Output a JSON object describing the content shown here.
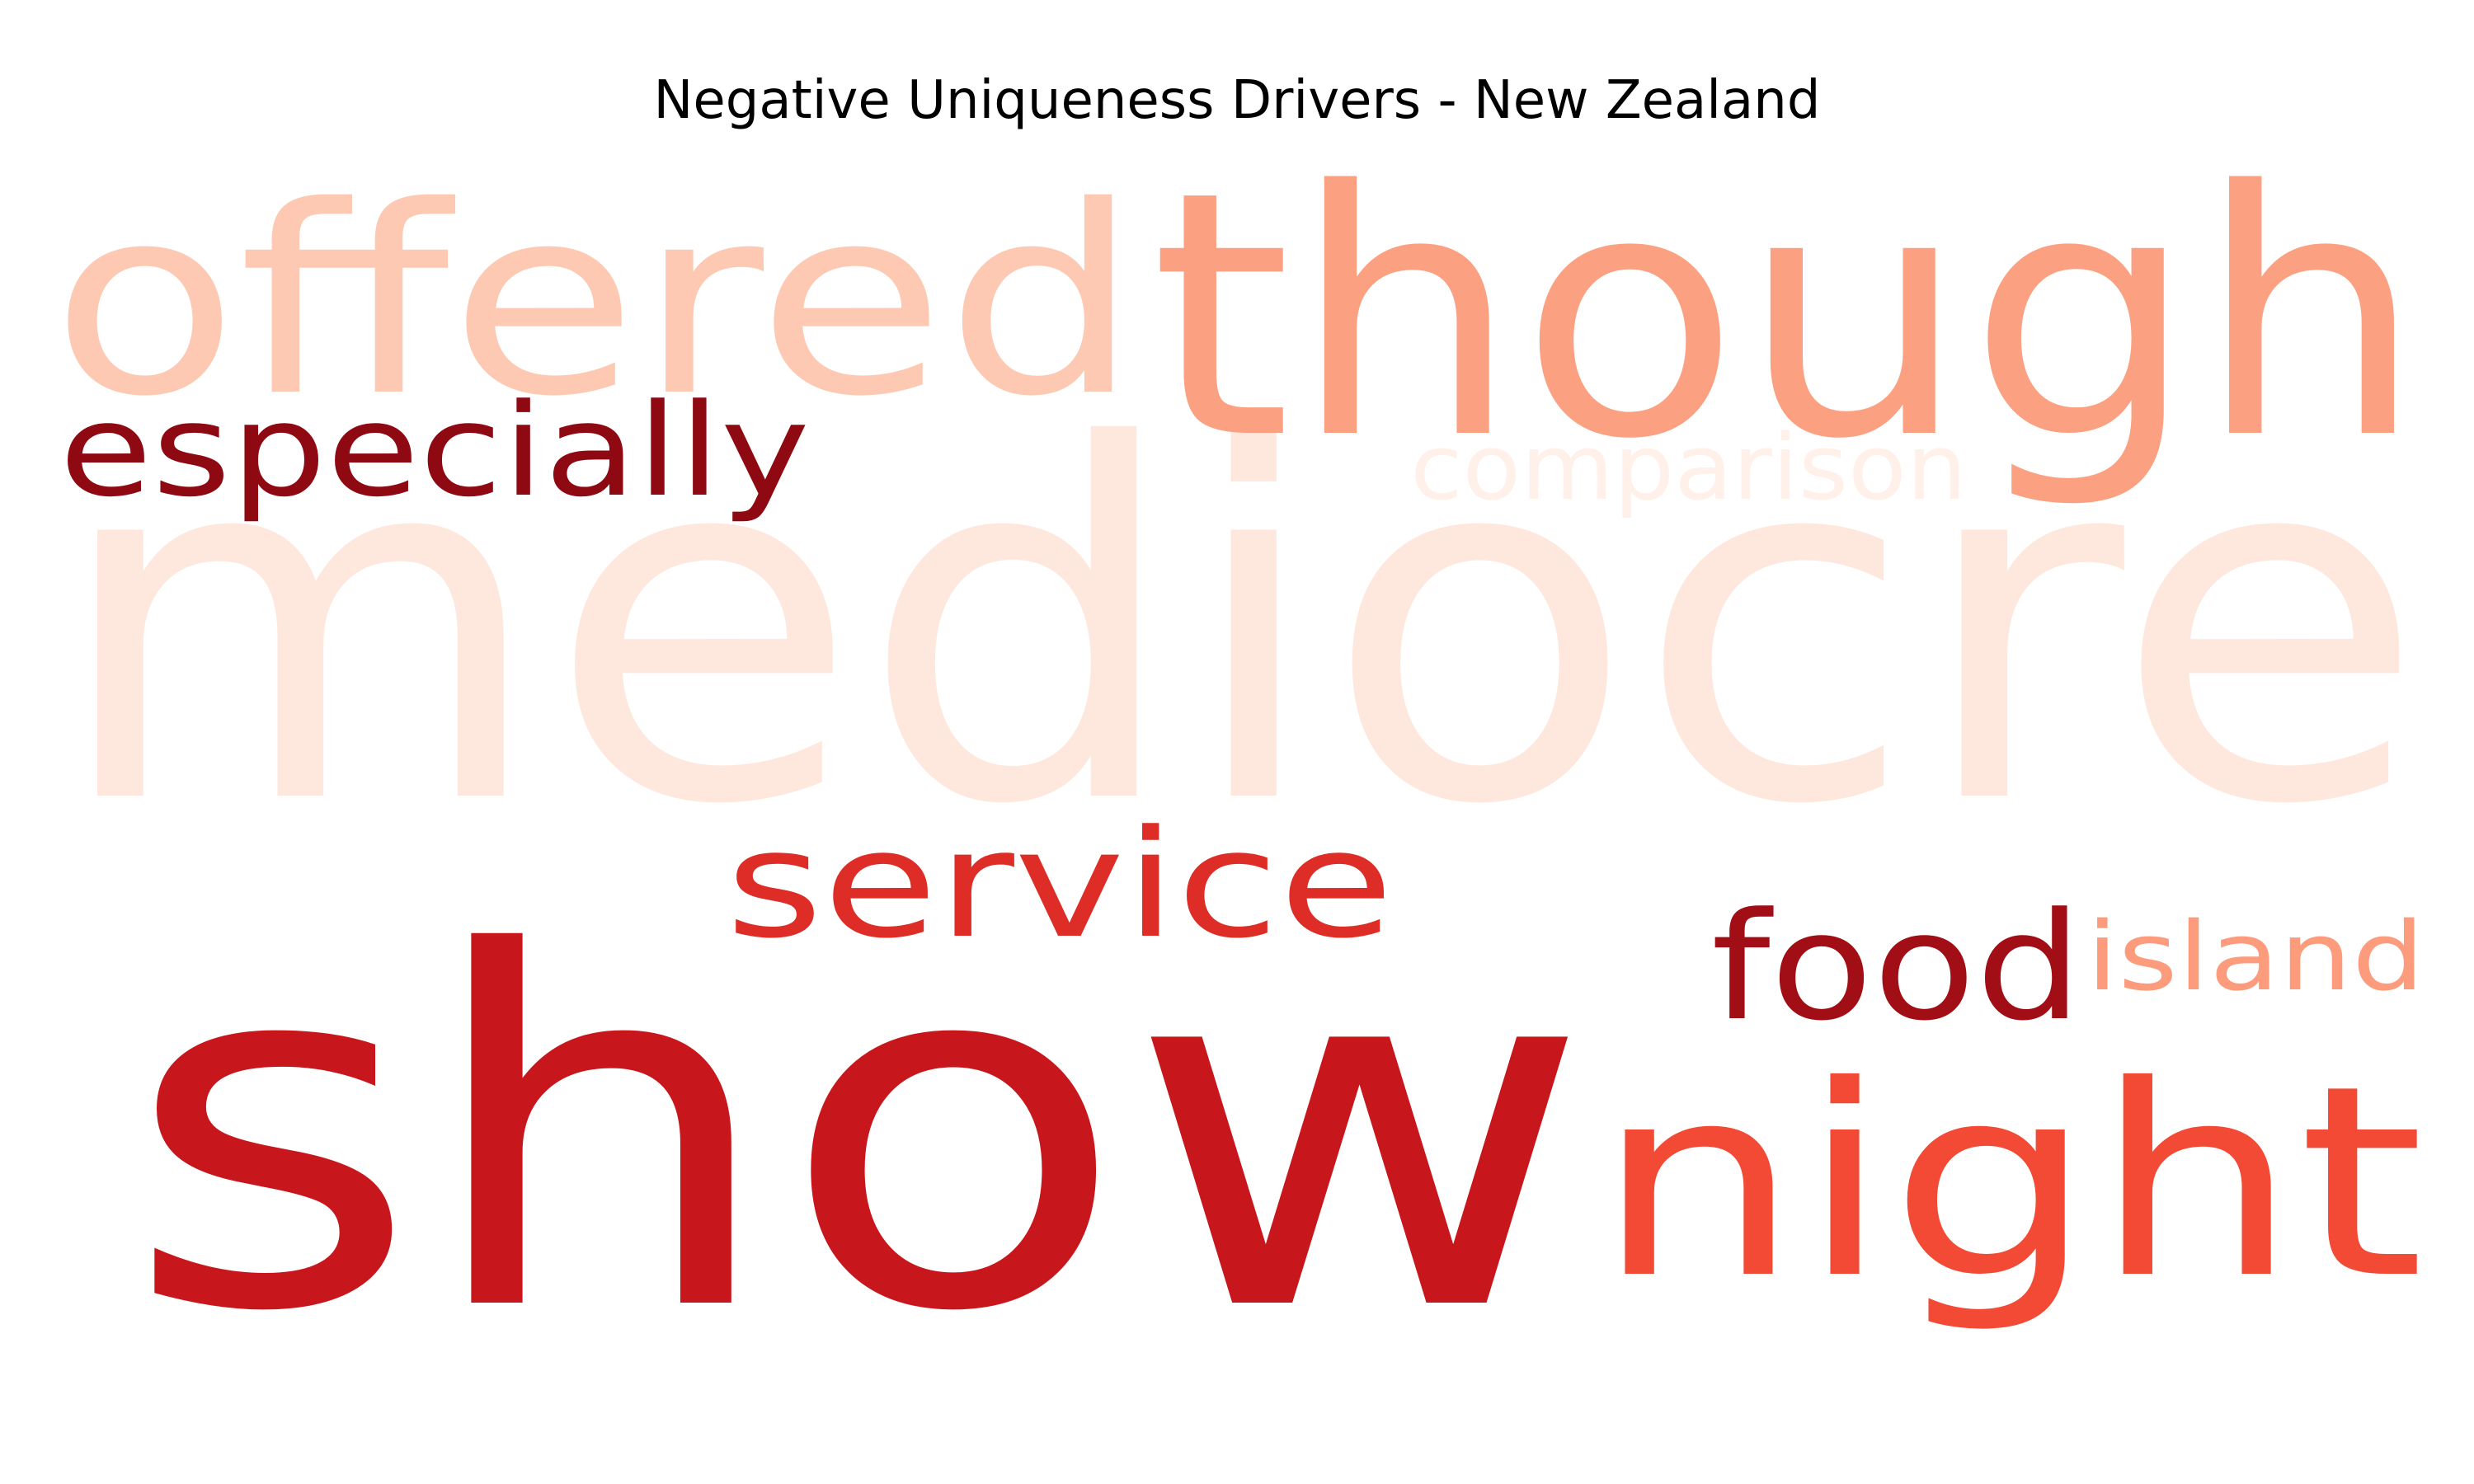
{
  "chart_data": {
    "type": "wordcloud",
    "title": "Negative Uniqueness Drivers - New Zealand",
    "colormap": "Reds",
    "words": [
      {
        "text": "mediocre",
        "color": "#fee8de"
      },
      {
        "text": "show",
        "color": "#c8171c"
      },
      {
        "text": "though",
        "color": "#fca082"
      },
      {
        "text": "offered",
        "color": "#fdc9b3"
      },
      {
        "text": "night",
        "color": "#f24a35"
      },
      {
        "text": "especially",
        "color": "#8e0912"
      },
      {
        "text": "service",
        "color": "#de2c26"
      },
      {
        "text": "food",
        "color": "#a10e15"
      },
      {
        "text": "island",
        "color": "#fc9c7d"
      },
      {
        "text": "comparison",
        "color": "#fff0ea"
      }
    ]
  }
}
